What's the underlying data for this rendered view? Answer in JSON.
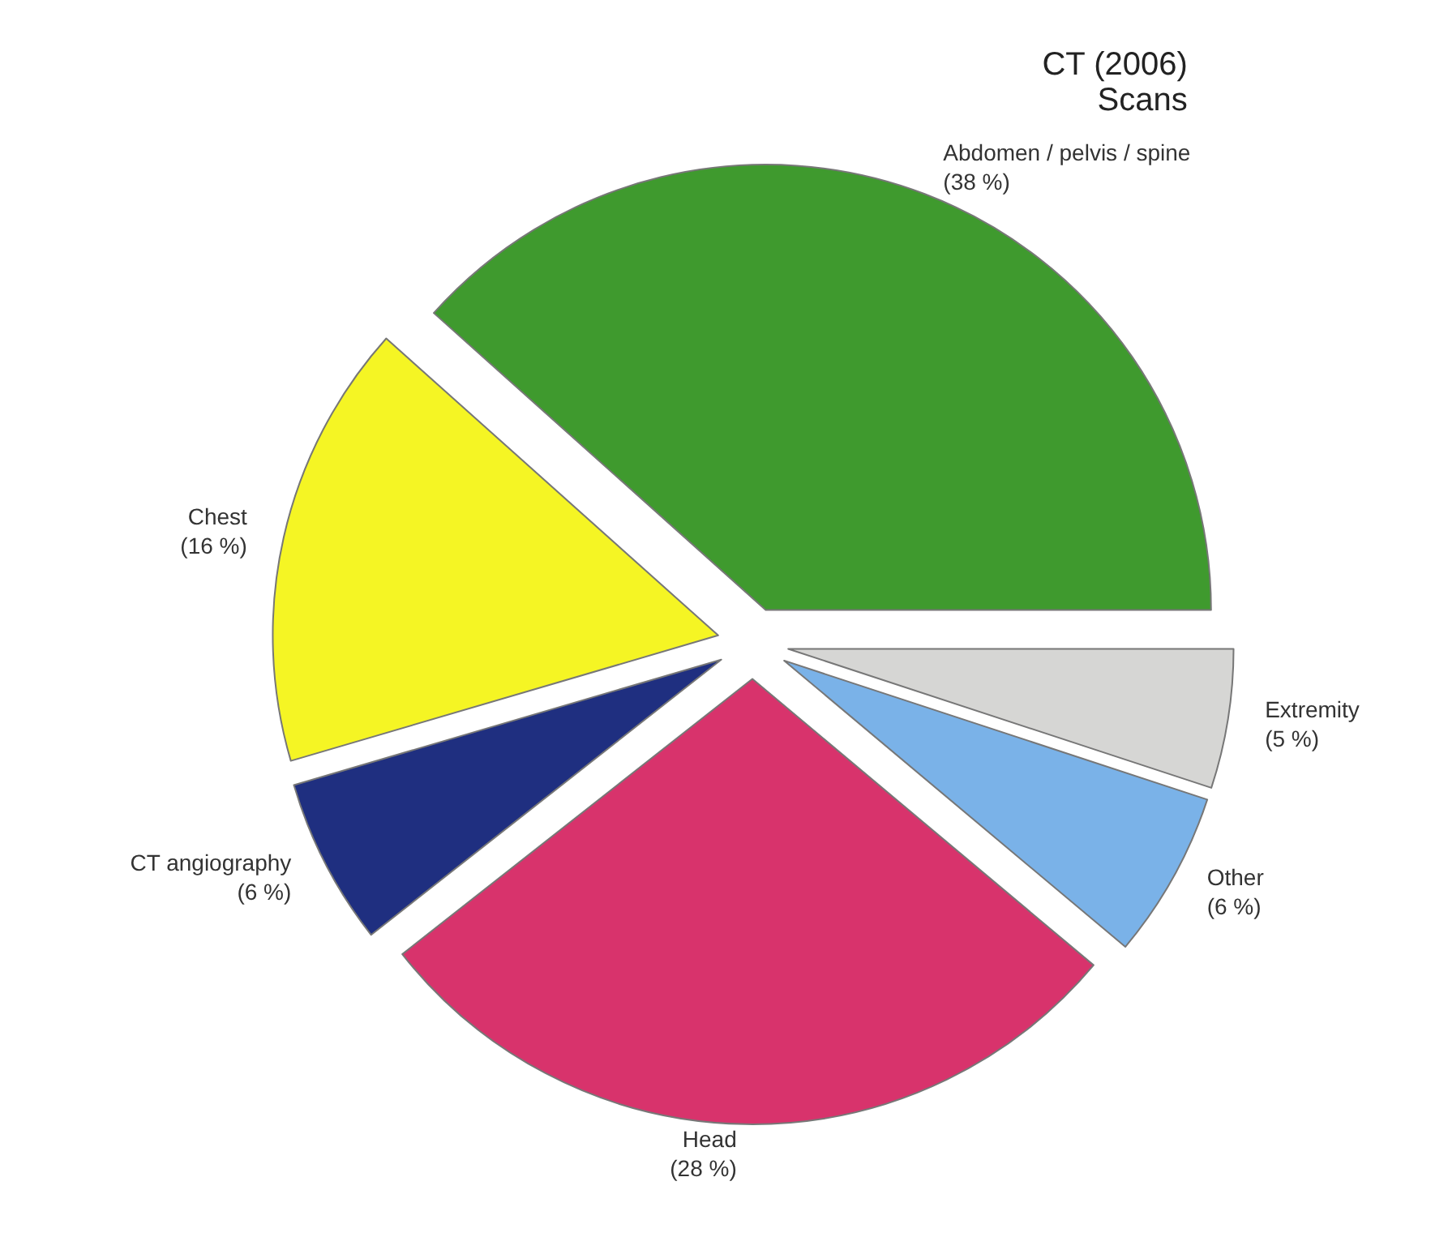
{
  "chart_data": {
    "type": "pie",
    "title": "CT (2006)",
    "subtitle": "Scans",
    "categories": [
      "Abdomen / pelvis / spine",
      "Chest",
      "CT angiography",
      "Head",
      "Other",
      "Extremity"
    ],
    "values": [
      38,
      16,
      6,
      28,
      6,
      5
    ],
    "value_labels": [
      "(38 %)",
      "(16 %)",
      "(6 %)",
      "(28 %)",
      "(6 %)",
      "(5 %)"
    ],
    "colors": [
      "#3f9a2e",
      "#f5f524",
      "#1f2f80",
      "#d8336c",
      "#7ab2e8",
      "#d6d6d4"
    ],
    "legend": false
  }
}
